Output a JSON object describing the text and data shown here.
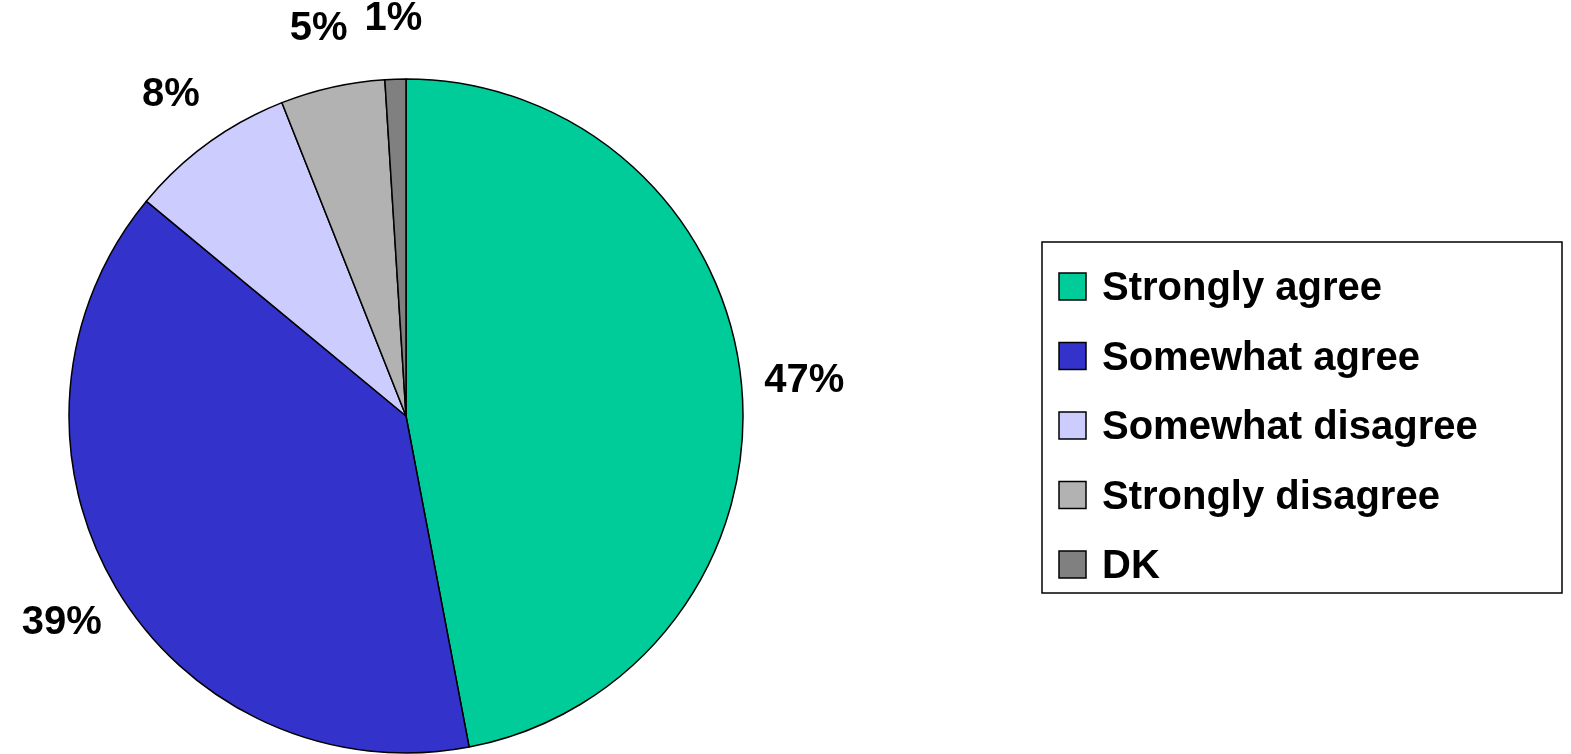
{
  "chart_data": {
    "type": "pie",
    "categories": [
      "Strongly agree",
      "Somewhat agree",
      "Somewhat disagree",
      "Strongly disagree",
      "DK"
    ],
    "values": [
      47,
      39,
      8,
      5,
      1
    ],
    "colors": [
      "#00cc99",
      "#3333cc",
      "#ccccff",
      "#b2b2b2",
      "#808080"
    ],
    "value_labels": [
      "47%",
      "39%",
      "8%",
      "5%",
      "1%"
    ],
    "legend": "right"
  }
}
